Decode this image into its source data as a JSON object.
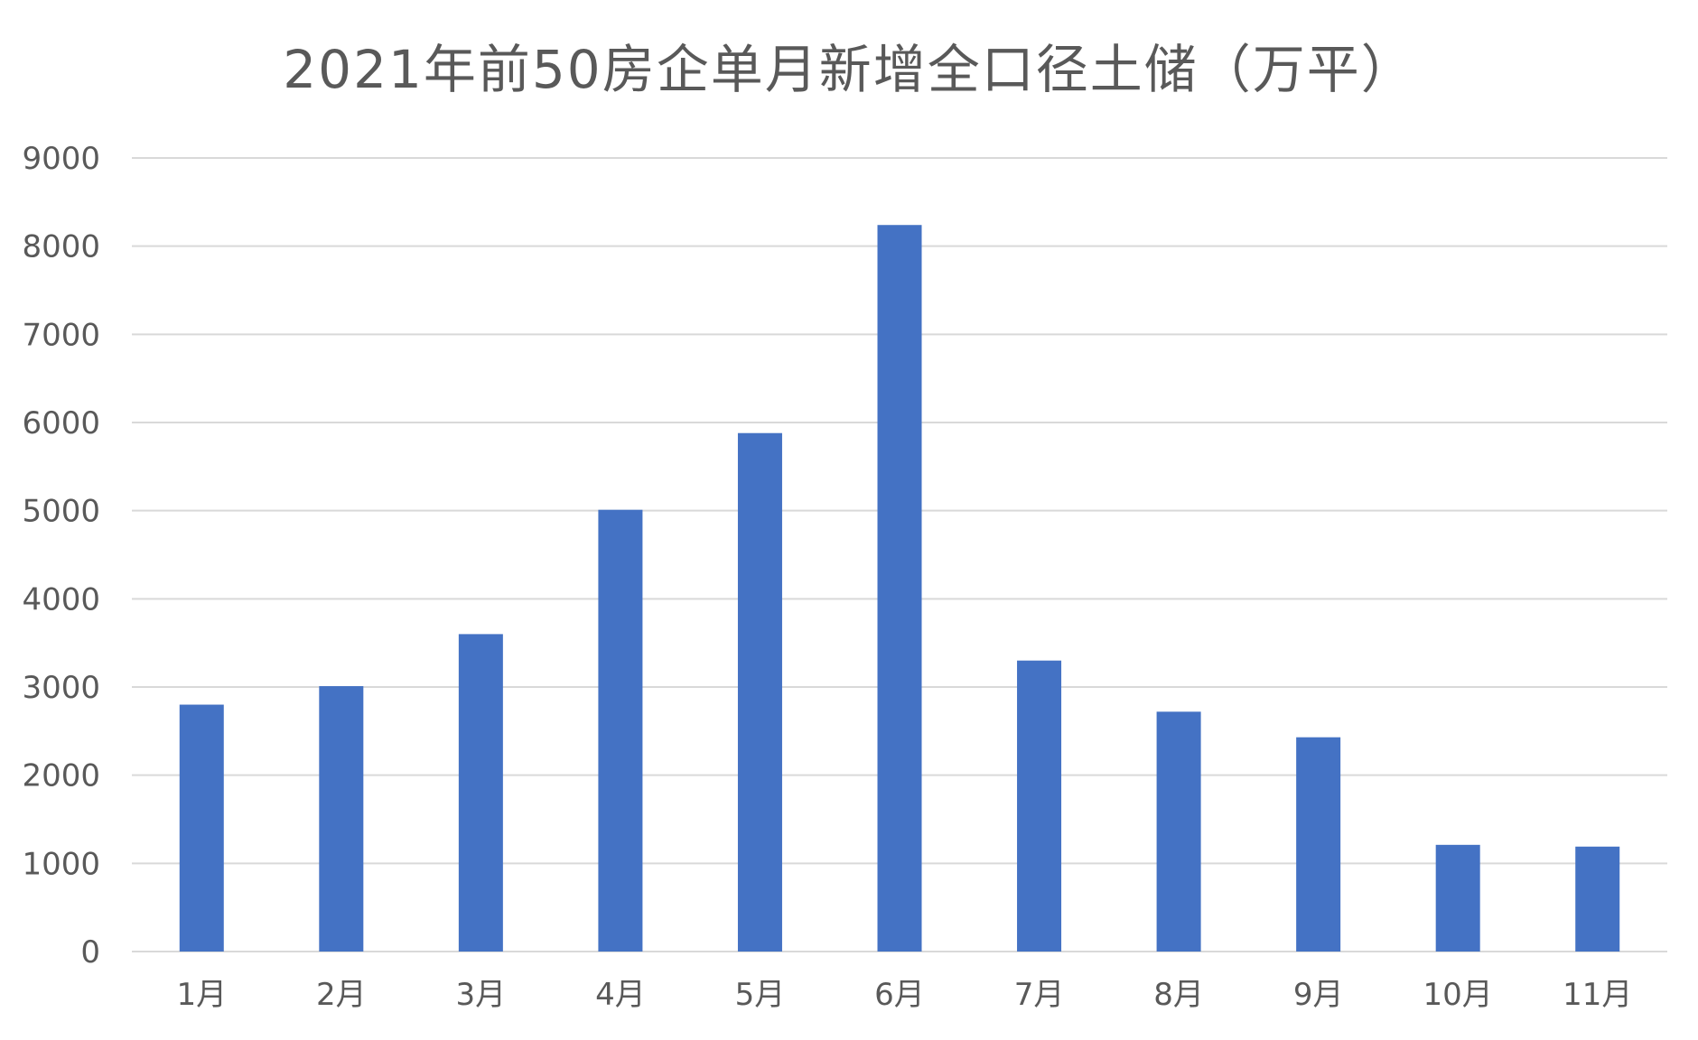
{
  "chart_data": {
    "type": "bar",
    "title": "2021年前50房企单月新增全口径土储（万平）",
    "categories": [
      "1月",
      "2月",
      "3月",
      "4月",
      "5月",
      "6月",
      "7月",
      "8月",
      "9月",
      "10月",
      "11月"
    ],
    "values": [
      2800,
      3010,
      3600,
      5010,
      5880,
      8240,
      3300,
      2720,
      2430,
      1210,
      1190
    ],
    "xlabel": "",
    "ylabel": "",
    "ylim": [
      0,
      9000
    ],
    "yticks": [
      0,
      1000,
      2000,
      3000,
      4000,
      5000,
      6000,
      7000,
      8000,
      9000
    ],
    "grid": true,
    "legend": "none",
    "colors": {
      "bar": "#4472C4",
      "grid": "#D9D9D9",
      "text": "#595959"
    }
  }
}
